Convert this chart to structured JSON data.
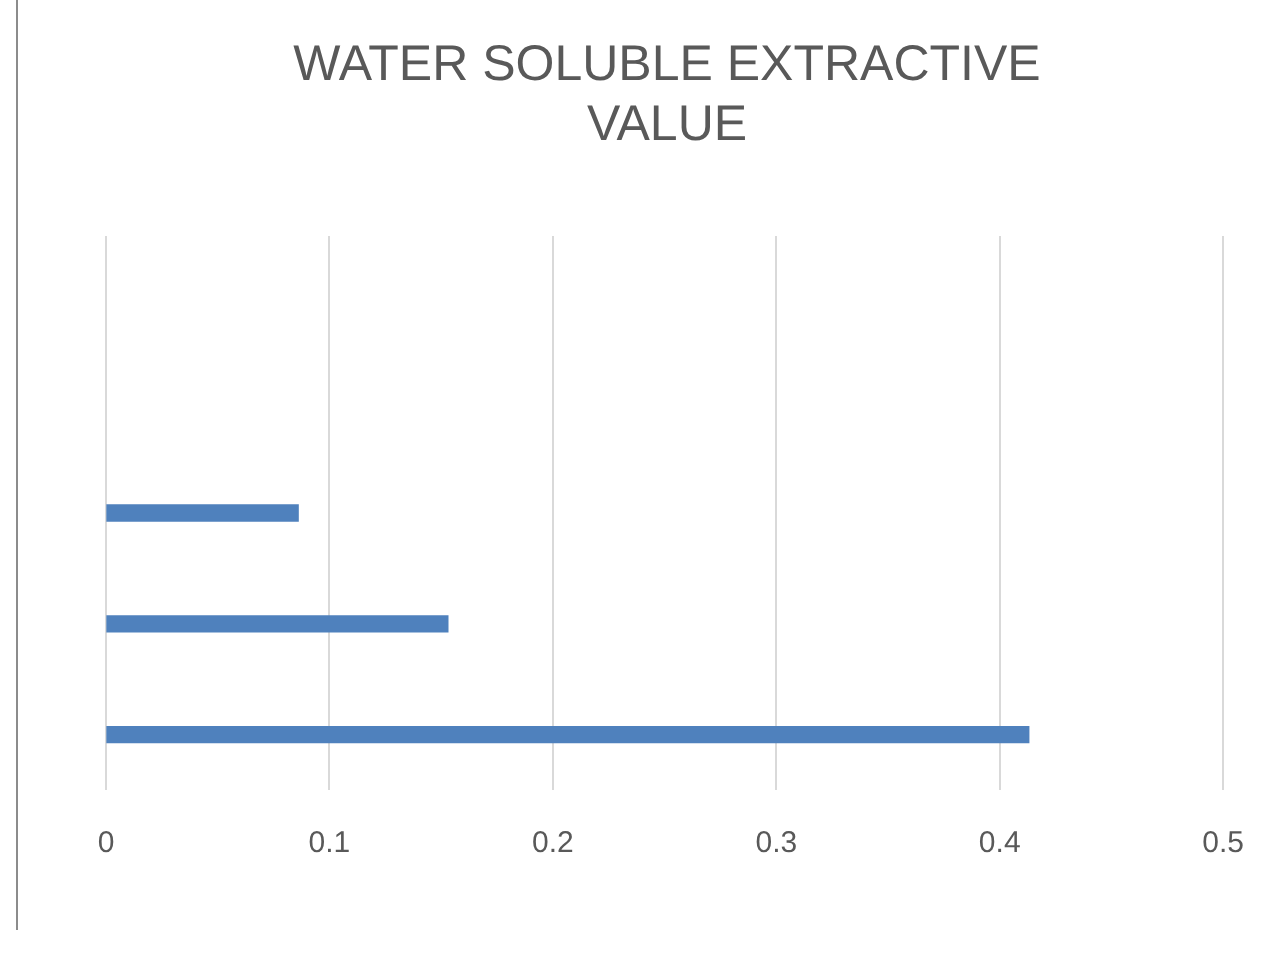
{
  "chart_data": {
    "type": "bar",
    "orientation": "horizontal",
    "title": "WATER SOLUBLE EXTRACTIVE VALUE",
    "categories": [
      null,
      null,
      null,
      null,
      null
    ],
    "values": [
      null,
      null,
      0.086,
      0.153,
      0.413
    ],
    "color": "#4f81bd",
    "xlim": [
      0,
      0.5
    ],
    "xticks": [
      0,
      0.1,
      0.2,
      0.3,
      0.4,
      0.5
    ],
    "grid": "x",
    "legend": false,
    "tick_labels": "x"
  }
}
